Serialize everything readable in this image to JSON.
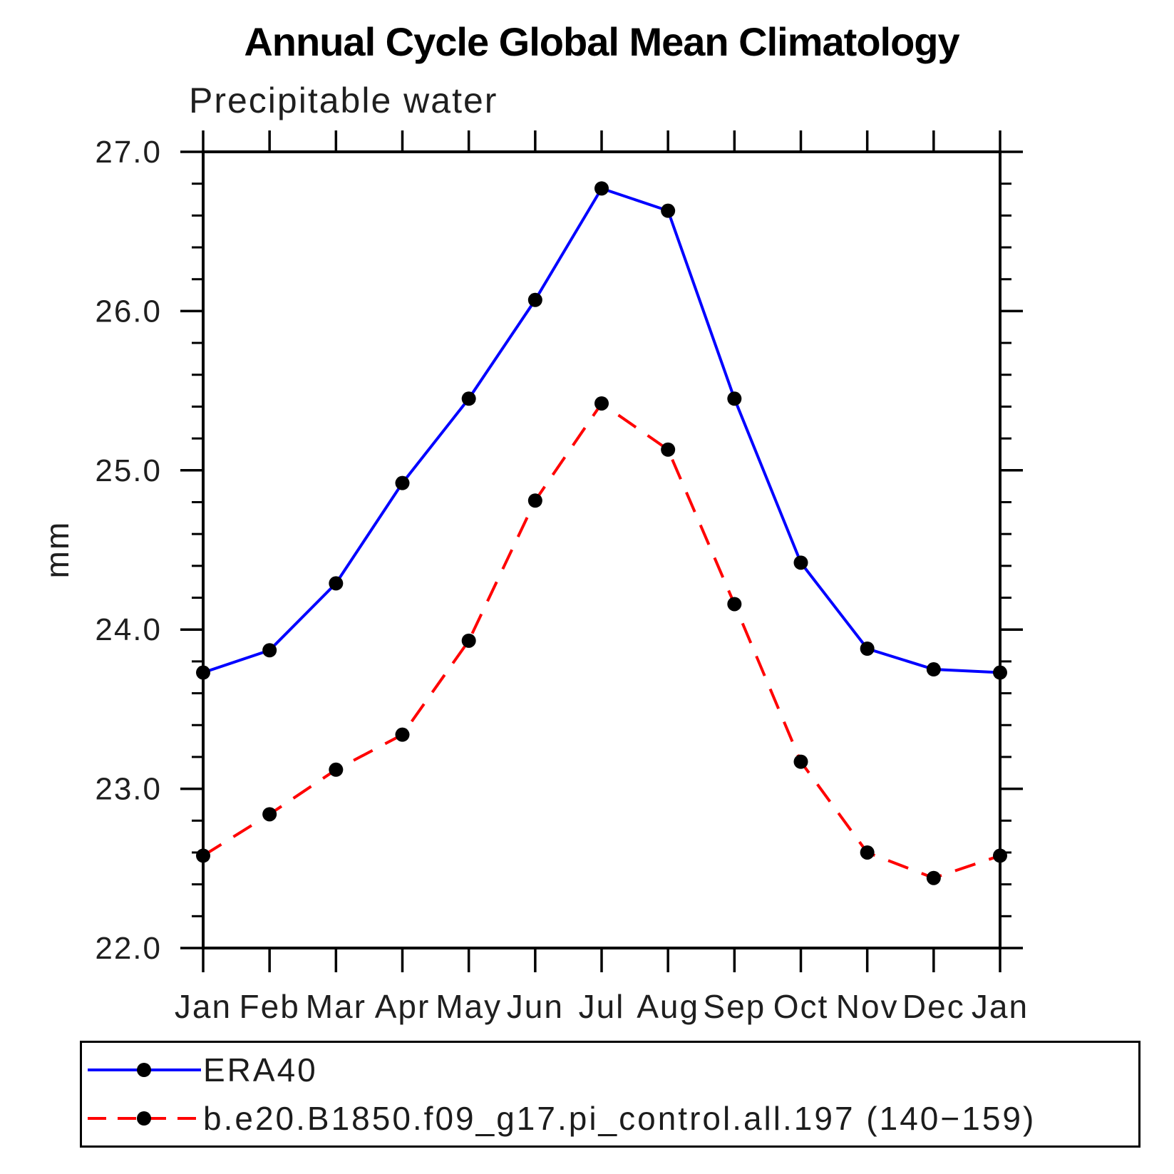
{
  "chart_data": {
    "type": "line",
    "title": "Annual Cycle Global Mean Climatology",
    "subtitle": "Precipitable water",
    "xlabel": "",
    "ylabel": "mm",
    "categories": [
      "Jan",
      "Feb",
      "Mar",
      "Apr",
      "May",
      "Jun",
      "Jul",
      "Aug",
      "Sep",
      "Oct",
      "Nov",
      "Dec",
      "Jan"
    ],
    "ylim": [
      22.0,
      27.0
    ],
    "ytick_interval": 1.0,
    "ytick_minor_interval": 0.2,
    "ytick_labels": [
      "22.0",
      "23.0",
      "24.0",
      "25.0",
      "26.0",
      "27.0"
    ],
    "grid": false,
    "legend_position": "bottom-left-box",
    "series": [
      {
        "name": "ERA40",
        "line_style": "solid",
        "line_color": "#0000ff",
        "marker": "filled-circle",
        "marker_color": "#000000",
        "values": [
          23.73,
          23.87,
          24.29,
          24.92,
          25.45,
          26.07,
          26.77,
          26.63,
          25.45,
          24.42,
          23.88,
          23.75,
          23.73
        ]
      },
      {
        "name": "b.e20.B1850.f09_g17.pi_control.all.197 (140−159)",
        "line_style": "dashed",
        "line_color": "#ff0000",
        "marker": "filled-circle",
        "marker_color": "#000000",
        "values": [
          22.58,
          22.84,
          23.12,
          23.34,
          23.93,
          24.81,
          25.42,
          25.13,
          24.16,
          23.17,
          22.6,
          22.44,
          22.58
        ]
      }
    ],
    "colors": {
      "axis": "#000000",
      "tick_label": "#1f1f1f",
      "background": "#ffffff"
    }
  }
}
